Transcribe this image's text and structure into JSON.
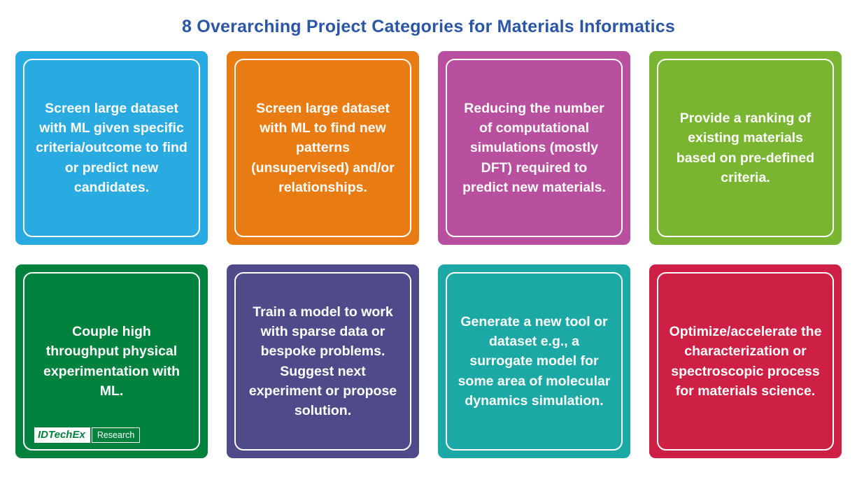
{
  "title": {
    "text": "8 Overarching Project Categories for Materials Informatics",
    "color": "#2B55A5"
  },
  "cards": [
    {
      "text": "Screen large dataset with ML given specific criteria/outcome to find or predict new candidates.",
      "color": "#29ABE2"
    },
    {
      "text": "Screen large dataset with ML to find new patterns (unsupervised) and/or relationships.",
      "color": "#E87B12"
    },
    {
      "text": "Reducing the number of computational simulations (mostly DFT) required to predict new materials.",
      "color": "#B9509F"
    },
    {
      "text": "Provide a ranking of existing materials based on pre-defined criteria.",
      "color": "#79B530"
    },
    {
      "text": "Couple high throughput physical experimentation with ML.",
      "color": "#00813D"
    },
    {
      "text": "Train a model to work with sparse data or bespoke problems. Suggest next experiment or propose solution.",
      "color": "#4F4B8B"
    },
    {
      "text": "Generate a new tool or dataset e.g., a surrogate model for some area of molecular dynamics simulation.",
      "color": "#1CA9A6"
    },
    {
      "text": "Optimize/accelerate the characterization or spectroscopic process for materials science.",
      "color": "#CE2045"
    }
  ],
  "logo": {
    "brand": "IDTechEx",
    "label": "Research",
    "brand_color": "#00813D"
  }
}
